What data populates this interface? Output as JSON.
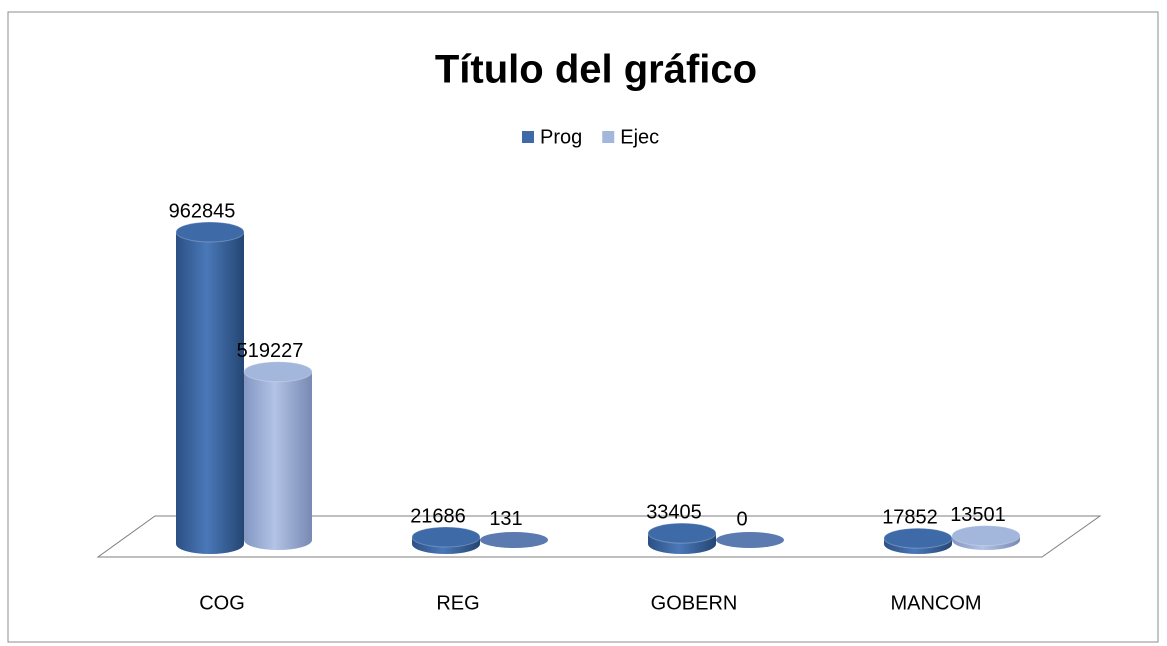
{
  "chart_data": {
    "type": "bar3d",
    "title": "Título del gráfico",
    "categories": [
      "COG",
      "REG",
      "GOBERN",
      "MANCOM"
    ],
    "series": [
      {
        "name": "Prog",
        "color": "#3e6aa8",
        "values": [
          962845,
          21686,
          33405,
          17852
        ]
      },
      {
        "name": "Ejec",
        "color": "#a3b6dc",
        "values": [
          519227,
          131,
          0,
          13501
        ]
      }
    ],
    "legend": "top"
  }
}
